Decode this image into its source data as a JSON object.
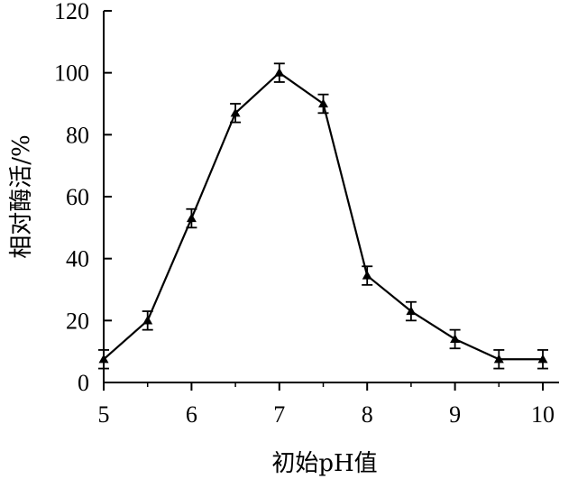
{
  "chart_data": {
    "type": "line",
    "title": "",
    "xlabel": "初始pH值",
    "ylabel": "相对酶活/%",
    "xlim": [
      5,
      10
    ],
    "ylim": [
      0,
      120
    ],
    "x_ticks": [
      "5",
      "6",
      "7",
      "8",
      "9",
      "10"
    ],
    "y_ticks": [
      "0",
      "20",
      "40",
      "60",
      "80",
      "100",
      "120"
    ],
    "grid": false,
    "series": [
      {
        "x": [
          5,
          5.5,
          6,
          6.5,
          7,
          7.5,
          8,
          8.5,
          9,
          9.5,
          10
        ],
        "values": [
          7.5,
          20,
          53,
          87,
          100,
          90,
          34.5,
          23,
          14,
          7.5,
          7.5
        ],
        "error": [
          3,
          3,
          3,
          3,
          3,
          3,
          3,
          3,
          3,
          3,
          3
        ],
        "marker": "triangle",
        "color": "#000000"
      }
    ]
  }
}
